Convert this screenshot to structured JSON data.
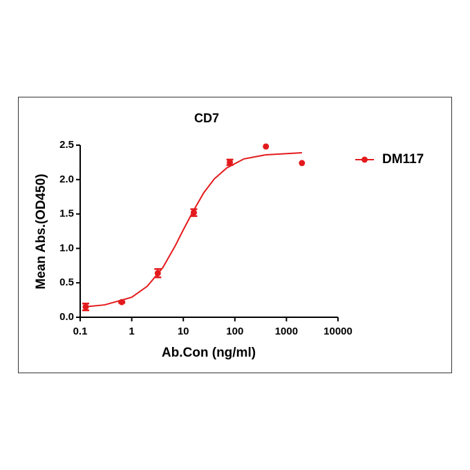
{
  "chart_data": {
    "type": "scatter",
    "title": "CD7",
    "x_label": "Ab.Con (ng/ml)",
    "y_label": "Mean Abs.(OD450)",
    "x_scale": "log",
    "xlim": [
      0.1,
      10000
    ],
    "xticks": [
      0.1,
      1,
      10,
      100,
      1000,
      10000
    ],
    "ylim": [
      0,
      2.5
    ],
    "yticks": [
      {
        "value": 0,
        "label": "0.0"
      },
      0.5,
      {
        "value": 1,
        "label": "1.0"
      },
      1.5,
      {
        "value": 2,
        "label": "2.0"
      },
      2.5
    ],
    "legend": "right",
    "series": [
      {
        "name": "DM117",
        "color": "#e31a1c",
        "x": [
          0.128,
          0.64,
          3.2,
          16,
          80,
          400,
          2000
        ],
        "values": [
          0.15,
          0.22,
          0.64,
          1.52,
          2.25,
          2.48,
          2.24
        ],
        "errors": [
          0.05,
          0.01,
          0.06,
          0.05,
          0.04,
          0,
          0
        ]
      }
    ],
    "curve": {
      "x": [
        0.12,
        0.3,
        1,
        2,
        4,
        7,
        10,
        15,
        25,
        40,
        70,
        150,
        400,
        2000
      ],
      "values": [
        0.15,
        0.18,
        0.29,
        0.45,
        0.72,
        1.04,
        1.27,
        1.52,
        1.81,
        2.01,
        2.17,
        2.3,
        2.36,
        2.39
      ]
    }
  }
}
